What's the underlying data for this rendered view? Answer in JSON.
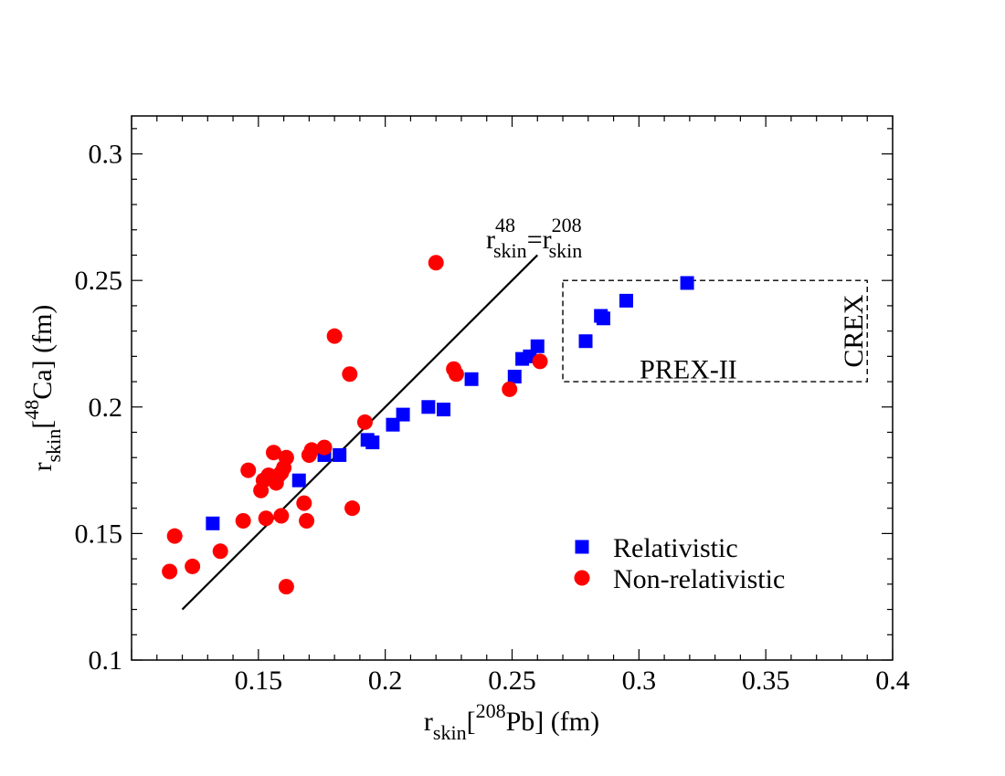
{
  "chart_data": {
    "type": "scatter",
    "title": "",
    "xlim": [
      0.1,
      0.4
    ],
    "ylim": [
      0.1,
      0.315
    ],
    "xticks": [
      "0.15",
      "0.2",
      "0.25",
      "0.3",
      "0.35",
      "0.4"
    ],
    "xtick_values": [
      0.15,
      0.2,
      0.25,
      0.3,
      0.35,
      0.4
    ],
    "yticks": [
      "0.1",
      "0.15",
      "0.2",
      "0.25",
      "0.3"
    ],
    "ytick_values": [
      0.1,
      0.15,
      0.2,
      0.25,
      0.3
    ],
    "xlabel": {
      "base": "r",
      "sub": "skin",
      "pre": "[",
      "sup": "208",
      "post": "Pb] (fm)"
    },
    "ylabel": {
      "base": "r",
      "sub": "skin",
      "pre": "[",
      "sup": "48",
      "post": "Ca] (fm)"
    },
    "series": [
      {
        "name": "Relativistic",
        "marker": "square",
        "color": "#0000ff",
        "points": [
          [
            0.132,
            0.154
          ],
          [
            0.166,
            0.171
          ],
          [
            0.176,
            0.181
          ],
          [
            0.182,
            0.181
          ],
          [
            0.193,
            0.187
          ],
          [
            0.195,
            0.186
          ],
          [
            0.203,
            0.193
          ],
          [
            0.207,
            0.197
          ],
          [
            0.217,
            0.2
          ],
          [
            0.223,
            0.199
          ],
          [
            0.234,
            0.211
          ],
          [
            0.251,
            0.212
          ],
          [
            0.254,
            0.219
          ],
          [
            0.257,
            0.22
          ],
          [
            0.26,
            0.224
          ],
          [
            0.279,
            0.226
          ],
          [
            0.285,
            0.236
          ],
          [
            0.286,
            0.235
          ],
          [
            0.295,
            0.242
          ],
          [
            0.319,
            0.249
          ]
        ]
      },
      {
        "name": "Non-relativistic",
        "marker": "circle",
        "color": "#ff0000",
        "points": [
          [
            0.115,
            0.135
          ],
          [
            0.117,
            0.149
          ],
          [
            0.124,
            0.137
          ],
          [
            0.135,
            0.143
          ],
          [
            0.144,
            0.155
          ],
          [
            0.146,
            0.175
          ],
          [
            0.151,
            0.167
          ],
          [
            0.152,
            0.171
          ],
          [
            0.153,
            0.156
          ],
          [
            0.154,
            0.173
          ],
          [
            0.156,
            0.182
          ],
          [
            0.157,
            0.17
          ],
          [
            0.158,
            0.173
          ],
          [
            0.159,
            0.174
          ],
          [
            0.159,
            0.157
          ],
          [
            0.16,
            0.176
          ],
          [
            0.161,
            0.129
          ],
          [
            0.161,
            0.18
          ],
          [
            0.168,
            0.162
          ],
          [
            0.169,
            0.155
          ],
          [
            0.17,
            0.181
          ],
          [
            0.171,
            0.183
          ],
          [
            0.176,
            0.184
          ],
          [
            0.18,
            0.228
          ],
          [
            0.186,
            0.213
          ],
          [
            0.187,
            0.16
          ],
          [
            0.192,
            0.194
          ],
          [
            0.22,
            0.257
          ],
          [
            0.227,
            0.215
          ],
          [
            0.228,
            0.213
          ],
          [
            0.249,
            0.207
          ],
          [
            0.261,
            0.218
          ]
        ]
      }
    ],
    "reference_line": {
      "label": {
        "base": "r",
        "sup": "48",
        "sub": "skin",
        "eq": "=r",
        "sup2": "208",
        "sub2": "skin"
      },
      "from": [
        0.12,
        0.12
      ],
      "to": [
        0.26,
        0.26
      ]
    },
    "regions": [
      {
        "name": "PREX-II / CREX",
        "x_range": [
          0.27,
          0.39
        ],
        "y_range": [
          0.21,
          0.25
        ],
        "label_x": "PREX-II",
        "label_y": "CREX",
        "style": "dashed"
      }
    ],
    "legend": {
      "position": "bottom-right",
      "entries": [
        {
          "label": "Relativistic",
          "marker": "square",
          "color": "#0000ff"
        },
        {
          "label": "Non-relativistic",
          "marker": "circle",
          "color": "#ff0000"
        }
      ]
    },
    "grid": false
  }
}
